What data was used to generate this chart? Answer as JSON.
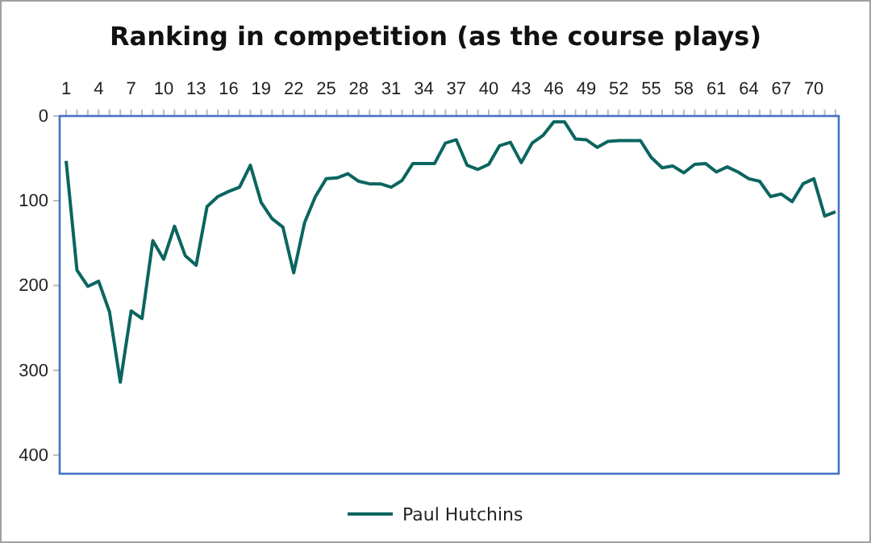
{
  "chart_data": {
    "type": "line",
    "title": "Ranking in competition (as the course plays)",
    "categories": [
      "1",
      null,
      null,
      "4",
      null,
      null,
      "7",
      null,
      null,
      "10",
      null,
      null,
      "13",
      null,
      null,
      "16",
      null,
      null,
      "19",
      null,
      null,
      "22",
      null,
      null,
      "25",
      null,
      null,
      "28",
      null,
      null,
      "31",
      null,
      null,
      "34",
      null,
      null,
      "37",
      null,
      null,
      "40",
      null,
      null,
      "43",
      null,
      null,
      "46",
      null,
      null,
      "49",
      null,
      null,
      "52",
      null,
      null,
      "55",
      null,
      null,
      "58",
      null,
      null,
      "61",
      null,
      null,
      "64",
      null,
      null,
      "67",
      null,
      null,
      "70",
      null,
      null
    ],
    "series": [
      {
        "name": "Paul Hutchins",
        "color": "#0b6560",
        "values": [
          53,
          182,
          201,
          195,
          231,
          314,
          230,
          239,
          147,
          169,
          130,
          165,
          176,
          107,
          95,
          89,
          84,
          58,
          102,
          121,
          131,
          185,
          126,
          95,
          74,
          73,
          68,
          77,
          80,
          80,
          84,
          76,
          56,
          56,
          56,
          32,
          28,
          58,
          63,
          57,
          35,
          31,
          55,
          32,
          23,
          7,
          7,
          27,
          28,
          37,
          30,
          29,
          29,
          29,
          49,
          61,
          59,
          67,
          57,
          56,
          66,
          60,
          66,
          74,
          77,
          95,
          92,
          101,
          80,
          74,
          118,
          113
        ]
      }
    ],
    "ylim": [
      422,
      0
    ],
    "yticks": [
      0,
      100,
      200,
      300,
      400
    ],
    "grid": false,
    "legend": "bottom",
    "marker": "none",
    "line_style": "solid"
  }
}
